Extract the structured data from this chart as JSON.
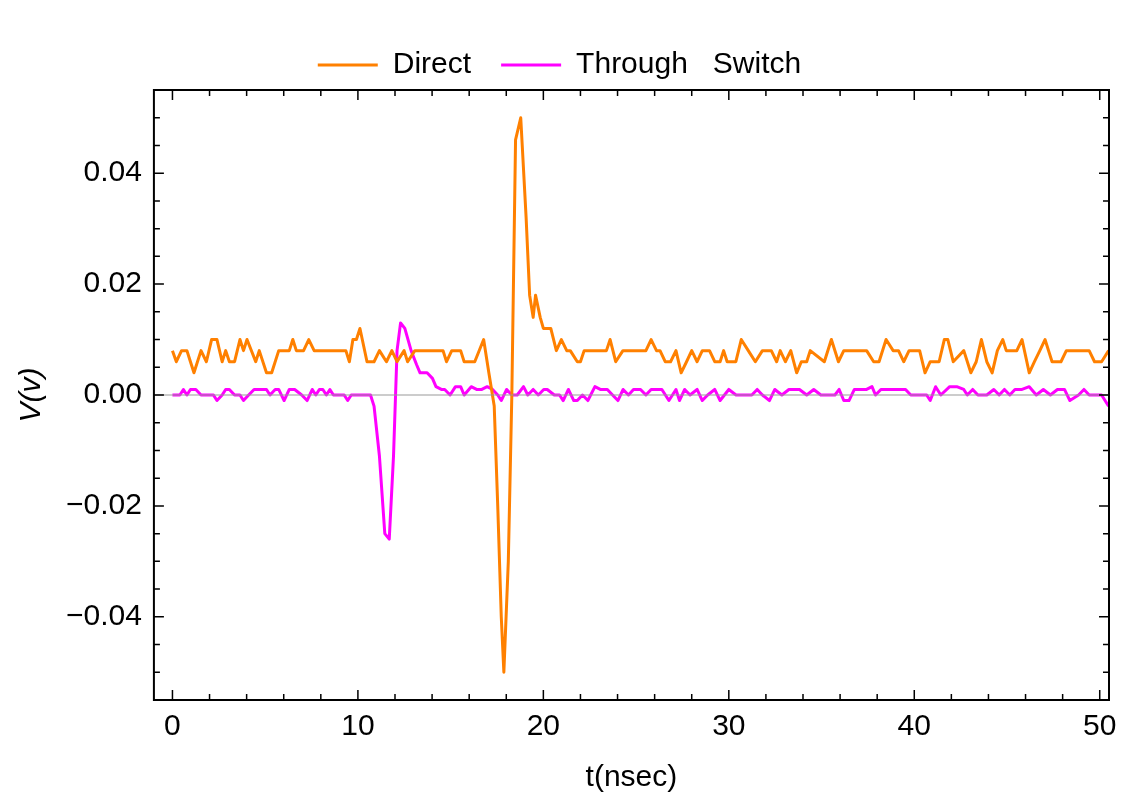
{
  "chart_data": {
    "type": "line",
    "xlabel": "t(nsec)",
    "ylabel": "V(v)",
    "legend": "top",
    "grid": false,
    "marker": "none",
    "line_style": "solid",
    "xlim": [
      -1,
      50.5
    ],
    "ylim": [
      -0.055,
      0.055
    ],
    "xticks": [
      0,
      {
        "value": 2,
        "label": null
      },
      {
        "value": 4,
        "label": null
      },
      {
        "value": 6,
        "label": null
      },
      {
        "value": 8,
        "label": null
      },
      10,
      {
        "value": 12,
        "label": null
      },
      {
        "value": 14,
        "label": null
      },
      {
        "value": 16,
        "label": null
      },
      {
        "value": 18,
        "label": null
      },
      20,
      {
        "value": 22,
        "label": null
      },
      {
        "value": 24,
        "label": null
      },
      {
        "value": 26,
        "label": null
      },
      {
        "value": 28,
        "label": null
      },
      30,
      {
        "value": 32,
        "label": null
      },
      {
        "value": 34,
        "label": null
      },
      {
        "value": 36,
        "label": null
      },
      {
        "value": 38,
        "label": null
      },
      40,
      {
        "value": 42,
        "label": null
      },
      {
        "value": 44,
        "label": null
      },
      {
        "value": 46,
        "label": null
      },
      {
        "value": 48,
        "label": null
      },
      50
    ],
    "yticks": [
      {
        "value": -0.05,
        "label": null
      },
      {
        "value": -0.045,
        "label": null
      },
      {
        "value": -0.04,
        "label": "−0.04"
      },
      {
        "value": -0.035,
        "label": null
      },
      {
        "value": -0.03,
        "label": null
      },
      {
        "value": -0.025,
        "label": null
      },
      {
        "value": -0.02,
        "label": "−0.02"
      },
      {
        "value": -0.015,
        "label": null
      },
      {
        "value": -0.01,
        "label": null
      },
      {
        "value": -0.005,
        "label": null
      },
      {
        "value": 0,
        "label": "0.00"
      },
      {
        "value": 0.005,
        "label": null
      },
      {
        "value": 0.01,
        "label": null
      },
      {
        "value": 0.015,
        "label": null
      },
      {
        "value": 0.02,
        "label": "0.02"
      },
      {
        "value": 0.025,
        "label": null
      },
      {
        "value": 0.03,
        "label": null
      },
      {
        "value": 0.035,
        "label": null
      },
      {
        "value": 0.04,
        "label": "0.04"
      },
      {
        "value": 0.045,
        "label": null
      },
      {
        "value": 0.05,
        "label": null
      }
    ],
    "ref_lines": [
      {
        "axis": "y",
        "value": 0,
        "color": "#999999"
      }
    ],
    "series": [
      {
        "name": "Direct",
        "color": "#ff8000",
        "x": [
          0,
          0.21,
          0.49,
          0.78,
          0.97,
          1.16,
          1.54,
          1.83,
          2.11,
          2.4,
          2.68,
          2.87,
          3.07,
          3.35,
          3.64,
          3.83,
          4.02,
          4.49,
          4.68,
          5.07,
          5.35,
          5.73,
          6.3,
          6.49,
          6.68,
          7.07,
          7.35,
          7.64,
          9.35,
          9.54,
          9.73,
          9.92,
          10.11,
          10.49,
          10.87,
          11.16,
          11.54,
          11.83,
          12.11,
          12.49,
          12.68,
          13.07,
          14.59,
          14.78,
          15.06,
          15.54,
          15.73,
          16.3,
          16.78,
          17.06,
          17.35,
          17.54,
          17.73,
          17.87,
          18.11,
          18.3,
          18.5,
          18.78,
          19.07,
          19.26,
          19.45,
          19.58,
          19.83,
          20.0,
          20.4,
          20.7,
          20.97,
          21.26,
          21.45,
          21.83,
          22.0,
          22.2,
          23.4,
          23.6,
          23.9,
          24.29,
          25.53,
          25.81,
          26.1,
          26.29,
          26.57,
          26.86,
          27.15,
          27.43,
          27.72,
          28.0,
          28.29,
          28.57,
          28.96,
          29.24,
          29.53,
          29.72,
          29.91,
          30.38,
          30.67,
          31.05,
          31.43,
          31.81,
          32.29,
          32.58,
          32.77,
          33.05,
          33.34,
          33.66,
          33.91,
          34.2,
          34.39,
          35.15,
          35.53,
          35.91,
          36.2,
          36.67,
          37.43,
          37.81,
          38.1,
          38.48,
          38.86,
          39.15,
          39.43,
          39.72,
          40.29,
          40.58,
          40.86,
          41.34,
          41.62,
          41.81,
          42.1,
          42.67,
          43.05,
          43.34,
          43.62,
          43.91,
          44.2,
          44.48,
          44.77,
          44.96,
          45.24,
          45.53,
          45.81,
          46.2,
          46.48,
          46.77,
          47.05,
          47.43,
          47.91,
          48.2,
          49.43,
          49.72,
          50.1,
          50.48
        ],
        "values": [
          0.008,
          0.006,
          0.008,
          0.008,
          0.006,
          0.004,
          0.008,
          0.006,
          0.01,
          0.01,
          0.006,
          0.008,
          0.006,
          0.006,
          0.01,
          0.008,
          0.01,
          0.006,
          0.008,
          0.004,
          0.004,
          0.008,
          0.008,
          0.01,
          0.008,
          0.008,
          0.01,
          0.008,
          0.008,
          0.006,
          0.01,
          0.01,
          0.012,
          0.006,
          0.006,
          0.008,
          0.006,
          0.008,
          0.006,
          0.008,
          0.006,
          0.008,
          0.008,
          0.006,
          0.008,
          0.008,
          0.006,
          0.006,
          0.01,
          0.004,
          -0.002,
          -0.02,
          -0.04,
          -0.05,
          -0.03,
          0.0,
          0.046,
          0.05,
          0.032,
          0.018,
          0.014,
          0.018,
          0.014,
          0.012,
          0.012,
          0.008,
          0.01,
          0.008,
          0.008,
          0.006,
          0.006,
          0.008,
          0.008,
          0.01,
          0.006,
          0.008,
          0.008,
          0.01,
          0.008,
          0.008,
          0.006,
          0.006,
          0.008,
          0.004,
          0.006,
          0.008,
          0.006,
          0.008,
          0.008,
          0.006,
          0.006,
          0.008,
          0.006,
          0.006,
          0.01,
          0.008,
          0.006,
          0.008,
          0.008,
          0.006,
          0.008,
          0.006,
          0.008,
          0.004,
          0.006,
          0.006,
          0.008,
          0.006,
          0.01,
          0.006,
          0.008,
          0.008,
          0.008,
          0.006,
          0.006,
          0.01,
          0.008,
          0.008,
          0.006,
          0.008,
          0.008,
          0.004,
          0.006,
          0.006,
          0.01,
          0.01,
          0.006,
          0.008,
          0.004,
          0.006,
          0.01,
          0.006,
          0.004,
          0.008,
          0.01,
          0.008,
          0.008,
          0.008,
          0.01,
          0.004,
          0.006,
          0.008,
          0.01,
          0.006,
          0.006,
          0.008,
          0.008,
          0.006,
          0.006,
          0.008
        ]
      },
      {
        "name": "Through   Switch",
        "color": "#ff00ff",
        "x": [
          0,
          0.4,
          0.59,
          0.78,
          0.97,
          1.26,
          1.54,
          2.21,
          2.4,
          2.68,
          2.87,
          3.07,
          3.35,
          3.64,
          3.83,
          4.11,
          4.4,
          5.07,
          5.26,
          5.54,
          5.73,
          6.02,
          6.3,
          6.59,
          6.97,
          7.26,
          7.54,
          7.73,
          7.92,
          8.11,
          8.3,
          8.49,
          8.68,
          9.26,
          9.45,
          9.64,
          10.68,
          10.87,
          11.16,
          11.45,
          11.69,
          11.92,
          12.11,
          12.3,
          12.53,
          12.87,
          13.16,
          13.35,
          13.73,
          14.02,
          14.21,
          14.5,
          14.68,
          14.97,
          15.26,
          15.54,
          15.73,
          16.11,
          16.4,
          16.68,
          16.97,
          17.26,
          17.54,
          17.73,
          18.02,
          18.3,
          18.59,
          18.93,
          19.16,
          19.45,
          19.73,
          20.02,
          20.21,
          20.59,
          20.87,
          21.07,
          21.35,
          21.64,
          21.83,
          22.11,
          22.4,
          22.78,
          23.07,
          23.45,
          23.73,
          24.02,
          24.3,
          24.59,
          24.86,
          25.24,
          25.53,
          25.81,
          26.39,
          26.77,
          27.15,
          27.34,
          27.62,
          27.91,
          28.29,
          28.57,
          28.86,
          29.24,
          29.53,
          30.0,
          30.39,
          31.24,
          31.53,
          31.81,
          32.19,
          32.48,
          32.86,
          33.24,
          33.81,
          34.2,
          34.58,
          34.96,
          35.72,
          35.95,
          36.2,
          36.48,
          36.77,
          37.43,
          37.72,
          37.91,
          38.2,
          39.53,
          39.81,
          40.67,
          40.86,
          41.15,
          41.43,
          41.91,
          42.29,
          42.67,
          42.86,
          43.15,
          43.43,
          43.91,
          44.29,
          44.58,
          44.86,
          45.15,
          45.43,
          45.81,
          46.2,
          46.58,
          46.96,
          47.34,
          47.72,
          48.1,
          48.39,
          48.86,
          49.15,
          49.43,
          50.1,
          50.48
        ],
        "values": [
          0,
          0,
          0.001,
          0,
          0.001,
          0.001,
          0,
          0,
          -0.001,
          0,
          0.001,
          0.001,
          0,
          0,
          -0.001,
          0,
          0.001,
          0.001,
          0,
          0.001,
          0.001,
          -0.001,
          0.001,
          0.001,
          0,
          -0.001,
          0.001,
          0,
          0.001,
          0.001,
          0,
          0.001,
          0,
          0,
          -0.001,
          0,
          0,
          -0.002,
          -0.011,
          -0.025,
          -0.026,
          -0.011,
          0.008,
          0.013,
          0.012,
          0.008,
          0.0055,
          0.004,
          0.004,
          0.003,
          0.0015,
          0.001,
          0.001,
          0,
          0.0015,
          0.0015,
          0,
          0.0015,
          0.001,
          0.001,
          0.0015,
          0.001,
          0,
          -0.001,
          0.001,
          0,
          0,
          0.0015,
          0,
          0.001,
          0,
          0.001,
          0.001,
          0,
          0,
          -0.001,
          0.001,
          -0.001,
          -0.001,
          0,
          -0.001,
          0.0015,
          0.001,
          0.001,
          0,
          -0.001,
          0.001,
          0,
          0.001,
          0.001,
          0,
          0.001,
          0.001,
          -0.001,
          0.001,
          -0.001,
          0.001,
          0,
          0.001,
          -0.001,
          0,
          0.001,
          -0.001,
          0.001,
          0,
          0,
          0.001,
          0,
          -0.001,
          0.001,
          0,
          0.001,
          0.001,
          0,
          0.001,
          0,
          0,
          0.001,
          -0.001,
          -0.001,
          0.001,
          0.001,
          0.0015,
          0,
          0.001,
          0.001,
          0,
          0,
          -0.001,
          0.0015,
          0,
          0.0015,
          0.0015,
          0.001,
          0,
          0.001,
          0,
          0,
          0.001,
          0,
          0.001,
          0,
          0.001,
          0.001,
          0.0015,
          0,
          0.001,
          0,
          0.001,
          0.001,
          -0.001,
          0,
          0.001,
          0,
          0,
          -0.002
        ]
      }
    ]
  }
}
